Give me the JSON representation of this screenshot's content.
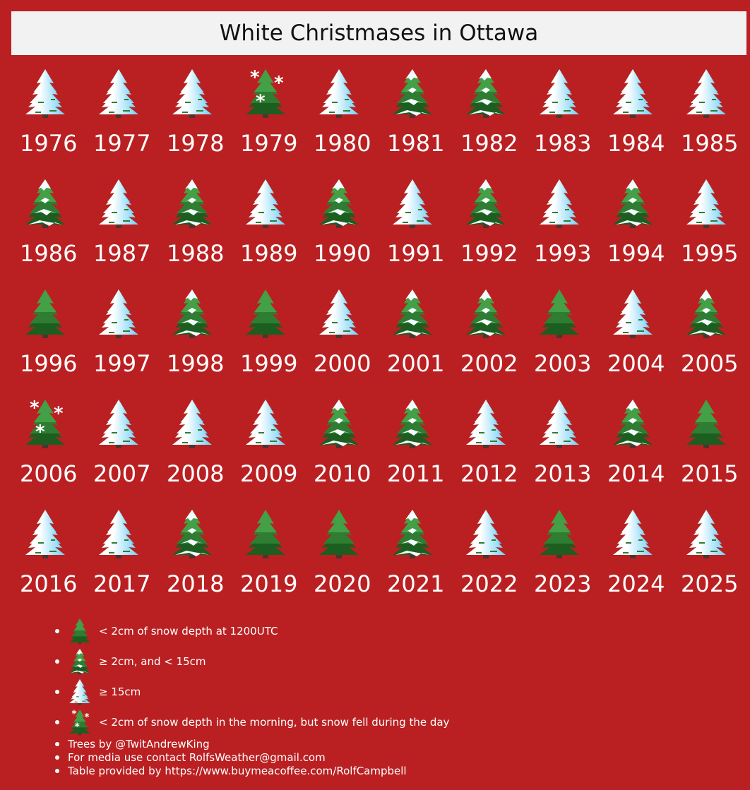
{
  "title": "White Christmases in Ottawa",
  "icon_names": {
    "green": "green-tree-icon",
    "light": "light-snow-tree-icon",
    "heavy": "snowy-tree-icon",
    "snowfall": "snowfall-tree-icon"
  },
  "years": [
    {
      "year": "1976",
      "cat": "heavy"
    },
    {
      "year": "1977",
      "cat": "heavy"
    },
    {
      "year": "1978",
      "cat": "heavy"
    },
    {
      "year": "1979",
      "cat": "snowfall"
    },
    {
      "year": "1980",
      "cat": "heavy"
    },
    {
      "year": "1981",
      "cat": "light"
    },
    {
      "year": "1982",
      "cat": "light"
    },
    {
      "year": "1983",
      "cat": "heavy"
    },
    {
      "year": "1984",
      "cat": "heavy"
    },
    {
      "year": "1985",
      "cat": "heavy"
    },
    {
      "year": "1986",
      "cat": "light"
    },
    {
      "year": "1987",
      "cat": "heavy"
    },
    {
      "year": "1988",
      "cat": "light"
    },
    {
      "year": "1989",
      "cat": "heavy"
    },
    {
      "year": "1990",
      "cat": "light"
    },
    {
      "year": "1991",
      "cat": "heavy"
    },
    {
      "year": "1992",
      "cat": "light"
    },
    {
      "year": "1993",
      "cat": "heavy"
    },
    {
      "year": "1994",
      "cat": "light"
    },
    {
      "year": "1995",
      "cat": "heavy"
    },
    {
      "year": "1996",
      "cat": "green"
    },
    {
      "year": "1997",
      "cat": "heavy"
    },
    {
      "year": "1998",
      "cat": "light"
    },
    {
      "year": "1999",
      "cat": "green"
    },
    {
      "year": "2000",
      "cat": "heavy"
    },
    {
      "year": "2001",
      "cat": "light"
    },
    {
      "year": "2002",
      "cat": "light"
    },
    {
      "year": "2003",
      "cat": "green"
    },
    {
      "year": "2004",
      "cat": "heavy"
    },
    {
      "year": "2005",
      "cat": "light"
    },
    {
      "year": "2006",
      "cat": "snowfall"
    },
    {
      "year": "2007",
      "cat": "heavy"
    },
    {
      "year": "2008",
      "cat": "heavy"
    },
    {
      "year": "2009",
      "cat": "heavy"
    },
    {
      "year": "2010",
      "cat": "light"
    },
    {
      "year": "2011",
      "cat": "light"
    },
    {
      "year": "2012",
      "cat": "heavy"
    },
    {
      "year": "2013",
      "cat": "heavy"
    },
    {
      "year": "2014",
      "cat": "light"
    },
    {
      "year": "2015",
      "cat": "green"
    },
    {
      "year": "2016",
      "cat": "heavy"
    },
    {
      "year": "2017",
      "cat": "heavy"
    },
    {
      "year": "2018",
      "cat": "light"
    },
    {
      "year": "2019",
      "cat": "green"
    },
    {
      "year": "2020",
      "cat": "green"
    },
    {
      "year": "2021",
      "cat": "light"
    },
    {
      "year": "2022",
      "cat": "heavy"
    },
    {
      "year": "2023",
      "cat": "green"
    },
    {
      "year": "2024",
      "cat": "heavy"
    },
    {
      "year": "2025",
      "cat": "heavy"
    }
  ],
  "legend": {
    "items": [
      {
        "cat": "green",
        "label": "< 2cm of snow depth at 1200UTC"
      },
      {
        "cat": "light",
        "label": "≥ 2cm, and < 15cm"
      },
      {
        "cat": "heavy",
        "label": "≥ 15cm"
      },
      {
        "cat": "snowfall",
        "label": "< 2cm of snow depth in the morning, but snow fell during the day"
      }
    ],
    "notes": [
      "Trees by @TwitAndrewKing",
      "For media use contact RolfsWeather@gmail.com",
      "Table provided by https://www.buymeacoffee.com/RolfCampbell"
    ]
  },
  "colors": {
    "background": "#ba2022",
    "title_bg": "#f2f2f2",
    "tree_green": "#2e7d32",
    "snow": "#ffffff",
    "snow_shade": "#8ed8f8"
  }
}
